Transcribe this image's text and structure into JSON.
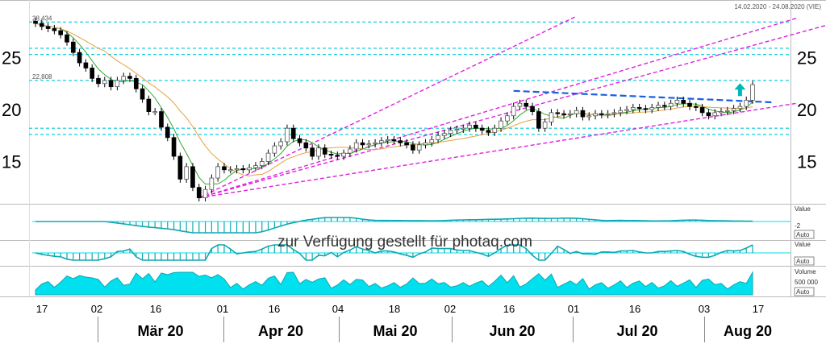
{
  "header": {
    "date_range": "14.02.2020 - 24.08.2020 (VIE)"
  },
  "watermark": "zur Verfügung gestellt für photaq.com",
  "colors": {
    "bull_candle": "#ffffff",
    "bear_candle": "#000000",
    "moving_avg_fast": "#33aa33",
    "moving_avg_slow": "#e8a040",
    "horizontal_levels": "#00c8d8",
    "trend_lines": "#e020e0",
    "resistance_line": "#1a5fe0",
    "arrow": "#00b8b8",
    "indicator_fill": "#00e0ee",
    "indicator_line": "#10a8b0"
  },
  "chart_data": {
    "type": "candlestick",
    "title": "",
    "ylim": [
      11,
      29
    ],
    "y_ticks": [
      15,
      20,
      25
    ],
    "x_tick_labels": [
      "17",
      "02",
      "16",
      "01",
      "16",
      "04",
      "18",
      "02",
      "16",
      "01",
      "16",
      "03",
      "17"
    ],
    "month_labels": [
      "Mär 20",
      "Apr 20",
      "Mai 20",
      "Jun 20",
      "Jul 20",
      "Aug 20"
    ],
    "horizontal_levels": [
      {
        "label": "28,434",
        "value": 28.434
      },
      {
        "label": "22,808",
        "value": 22.808
      },
      {
        "label": "",
        "value": 25.3
      },
      {
        "label": "",
        "value": 25.9
      },
      {
        "label": "",
        "value": 17.6
      },
      {
        "label": "",
        "value": 18.2
      }
    ],
    "closes": [
      28.3,
      28.0,
      27.8,
      27.6,
      27.2,
      26.5,
      25.5,
      24.5,
      24.0,
      23.0,
      22.5,
      22.8,
      22.2,
      22.8,
      23.2,
      23.0,
      22.0,
      21.0,
      19.8,
      19.8,
      18.3,
      17.3,
      15.5,
      13.3,
      14.5,
      12.5,
      11.5,
      12.3,
      13.4,
      14.5,
      14.2,
      14.2,
      14.3,
      14.2,
      14.4,
      14.6,
      15.0,
      15.8,
      16.5,
      16.9,
      18.2,
      17.2,
      16.8,
      16.3,
      15.5,
      16.3,
      15.7,
      15.6,
      15.5,
      15.8,
      16.2,
      16.8,
      16.6,
      16.7,
      16.8,
      17.0,
      17.1,
      17.0,
      16.8,
      16.6,
      16.1,
      16.6,
      16.8,
      17.1,
      17.5,
      17.7,
      18.0,
      18.1,
      18.2,
      18.5,
      18.2,
      18.0,
      17.8,
      18.2,
      18.9,
      19.4,
      20.3,
      20.6,
      20.3,
      19.8,
      18.2,
      18.8,
      19.7,
      19.6,
      19.5,
      19.6,
      19.9,
      19.3,
      19.4,
      19.6,
      19.5,
      19.6,
      19.7,
      19.9,
      20.0,
      20.2,
      20.1,
      20.0,
      20.2,
      20.4,
      20.3,
      20.6,
      20.9,
      20.6,
      20.3,
      20.2,
      19.7,
      19.4,
      19.7,
      19.8,
      19.9,
      20.1,
      20.3,
      20.9,
      22.4
    ],
    "indicator_1": {
      "label": "Value",
      "reference": -2,
      "button": "Auto"
    },
    "indicator_2": {
      "label": "Value",
      "button": "Auto"
    },
    "volume": {
      "label": "Volume",
      "reference": "500 000",
      "button": "Auto"
    }
  }
}
